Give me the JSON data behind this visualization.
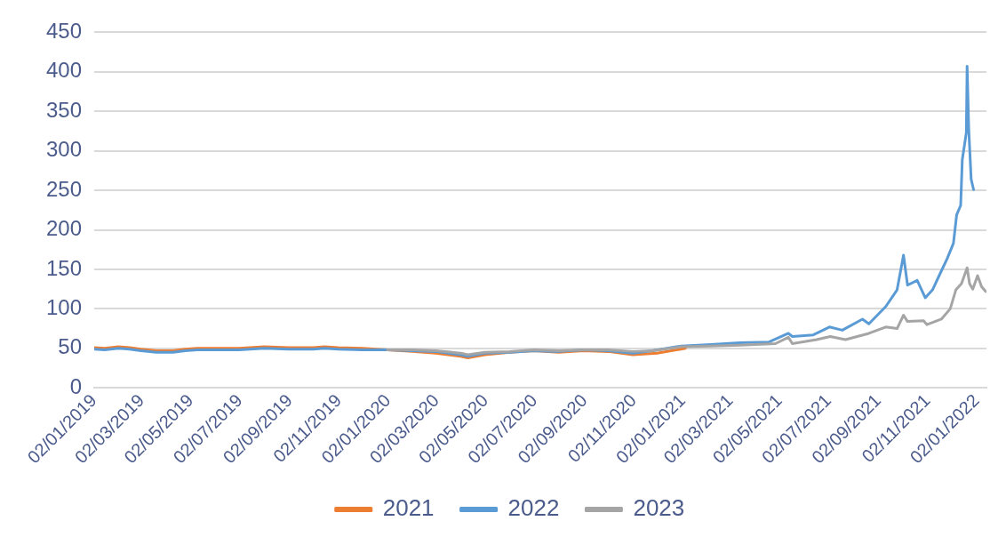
{
  "chart_data": {
    "type": "line",
    "legend": "bottom",
    "grid": "y",
    "marker": "none",
    "line_style": "solid",
    "xlim": [
      "2019-01-02",
      "2022-01-14"
    ],
    "xticks": [
      {
        "value": "2019-01-02",
        "label": "02/01/2019"
      },
      {
        "value": "2019-03-02",
        "label": "02/03/2019"
      },
      {
        "value": "2019-05-02",
        "label": "02/05/2019"
      },
      {
        "value": "2019-07-02",
        "label": "02/07/2019"
      },
      {
        "value": "2019-09-02",
        "label": "02/09/2019"
      },
      {
        "value": "2019-11-02",
        "label": "02/11/2019"
      },
      {
        "value": "2020-01-02",
        "label": "02/01/2020"
      },
      {
        "value": "2020-03-02",
        "label": "02/03/2020"
      },
      {
        "value": "2020-05-02",
        "label": "02/05/2020"
      },
      {
        "value": "2020-07-02",
        "label": "02/07/2020"
      },
      {
        "value": "2020-09-02",
        "label": "02/09/2020"
      },
      {
        "value": "2020-11-02",
        "label": "02/11/2020"
      },
      {
        "value": "2021-01-02",
        "label": "02/01/2021"
      },
      {
        "value": "2021-03-02",
        "label": "02/03/2021"
      },
      {
        "value": "2021-05-02",
        "label": "02/05/2021"
      },
      {
        "value": "2021-07-02",
        "label": "02/07/2021"
      },
      {
        "value": "2021-09-02",
        "label": "02/09/2021"
      },
      {
        "value": "2021-11-02",
        "label": "02/11/2021"
      },
      {
        "value": "2022-01-02",
        "label": "02/01/2022"
      }
    ],
    "ylim": [
      0,
      450
    ],
    "yticks": [
      0,
      50,
      100,
      150,
      200,
      250,
      300,
      350,
      400,
      450
    ],
    "series": [
      {
        "name": "2021",
        "color": "#ed7d31",
        "x": [
          "2019-01-02",
          "2019-01-15",
          "2019-02-01",
          "2019-02-15",
          "2019-03-01",
          "2019-03-20",
          "2019-04-10",
          "2019-04-25",
          "2019-05-10",
          "2019-06-01",
          "2019-07-01",
          "2019-08-01",
          "2019-09-01",
          "2019-10-01",
          "2019-10-15",
          "2019-11-01",
          "2019-12-01",
          "2020-01-01",
          "2020-02-01",
          "2020-03-01",
          "2020-04-01",
          "2020-04-10",
          "2020-05-01",
          "2020-06-01",
          "2020-07-01",
          "2020-08-01",
          "2020-09-01",
          "2020-10-01",
          "2020-11-01",
          "2020-12-01",
          "2021-01-05"
        ],
        "values": [
          51,
          50,
          52,
          51,
          49,
          47,
          47,
          49,
          50,
          50,
          50,
          52,
          51,
          51,
          52,
          51,
          50,
          48,
          46,
          44,
          40,
          38,
          42,
          45,
          47,
          45,
          47,
          46,
          42,
          44,
          50
        ]
      },
      {
        "name": "2022",
        "color": "#5b9bd5",
        "x": [
          "2019-01-02",
          "2019-01-15",
          "2019-02-01",
          "2019-02-15",
          "2019-03-01",
          "2019-03-20",
          "2019-04-10",
          "2019-04-25",
          "2019-05-10",
          "2019-06-01",
          "2019-07-01",
          "2019-08-01",
          "2019-09-01",
          "2019-10-01",
          "2019-10-15",
          "2019-11-01",
          "2019-12-01",
          "2020-01-01",
          "2020-02-01",
          "2020-03-01",
          "2020-04-01",
          "2020-04-10",
          "2020-05-01",
          "2020-06-01",
          "2020-07-01",
          "2020-08-01",
          "2020-09-01",
          "2020-10-01",
          "2020-11-01",
          "2020-11-25",
          "2020-12-31",
          "2021-02-06",
          "2021-03-14",
          "2021-04-19",
          "2021-05-13",
          "2021-05-18",
          "2021-06-13",
          "2021-07-03",
          "2021-07-19",
          "2021-08-13",
          "2021-08-21",
          "2021-09-11",
          "2021-09-25",
          "2021-10-03",
          "2021-10-08",
          "2021-10-20",
          "2021-10-30",
          "2021-11-08",
          "2021-11-19",
          "2021-11-26",
          "2021-12-04",
          "2021-12-08",
          "2021-12-13",
          "2021-12-15",
          "2021-12-20",
          "2021-12-21",
          "2021-12-23",
          "2021-12-26",
          "2021-12-29"
        ],
        "values": [
          49,
          48,
          50,
          49,
          47,
          45,
          45,
          47,
          48,
          48,
          48,
          50,
          49,
          49,
          50,
          49,
          48,
          48,
          47,
          46,
          42,
          40,
          44,
          45,
          47,
          46,
          48,
          47,
          44,
          47,
          53,
          55,
          57,
          58,
          69,
          65,
          67,
          77,
          73,
          87,
          81,
          103,
          124,
          168,
          130,
          136,
          114,
          124,
          148,
          163,
          183,
          219,
          231,
          289,
          323,
          407,
          328,
          264,
          251
        ]
      },
      {
        "name": "2023",
        "color": "#a5a5a5",
        "x": [
          "2020-01-01",
          "2020-02-01",
          "2020-03-01",
          "2020-04-01",
          "2020-04-10",
          "2020-05-01",
          "2020-06-01",
          "2020-07-01",
          "2020-08-01",
          "2020-09-01",
          "2020-10-01",
          "2020-11-01",
          "2020-11-25",
          "2020-12-31",
          "2021-02-06",
          "2021-03-14",
          "2021-04-27",
          "2021-05-13",
          "2021-05-18",
          "2021-06-17",
          "2021-07-04",
          "2021-07-23",
          "2021-08-21",
          "2021-09-11",
          "2021-09-25",
          "2021-10-03",
          "2021-10-08",
          "2021-10-28",
          "2021-11-01",
          "2021-11-19",
          "2021-11-30",
          "2021-12-07",
          "2021-12-14",
          "2021-12-21",
          "2021-12-24",
          "2021-12-28",
          "2022-01-03",
          "2022-01-08",
          "2022-01-13"
        ],
        "values": [
          48,
          48,
          47,
          44,
          42,
          45,
          46,
          48,
          47,
          48,
          48,
          46,
          47,
          52,
          53,
          54,
          56,
          64,
          56,
          61,
          65,
          61,
          69,
          77,
          75,
          92,
          84,
          85,
          80,
          87,
          100,
          124,
          132,
          152,
          132,
          125,
          142,
          128,
          122
        ]
      }
    ]
  }
}
